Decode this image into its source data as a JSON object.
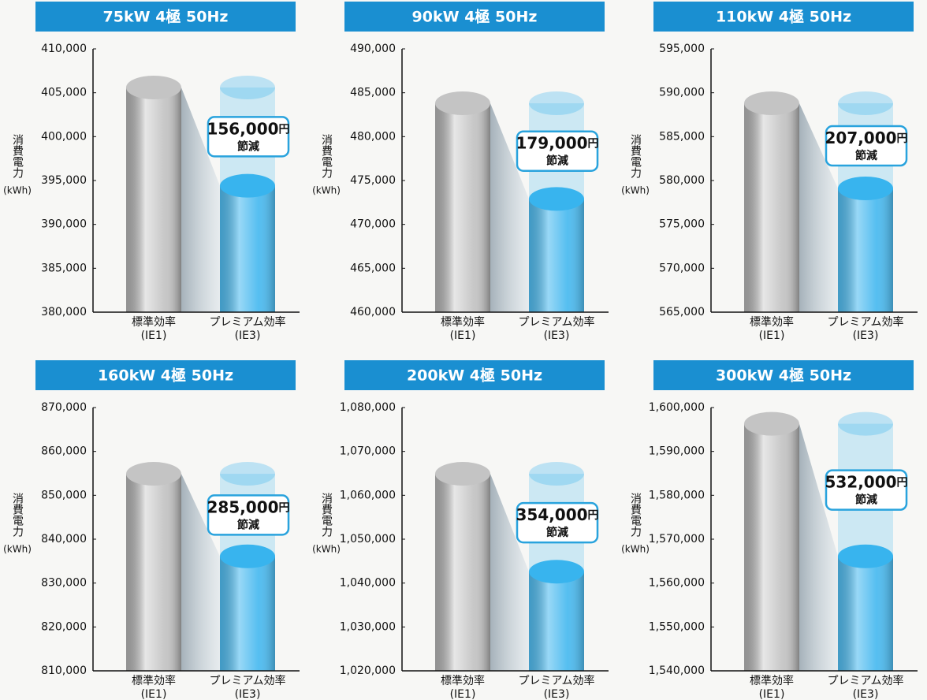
{
  "chart_data": [
    {
      "type": "cylinder",
      "title": "75kW 4極 50Hz",
      "ylabel": "消費電力",
      "yunit": "(kWh)",
      "categories": [
        "標準効率",
        "プレミアム効率"
      ],
      "category_notes": [
        "(IE1)",
        "(IE3)"
      ],
      "values": [
        405600,
        394400
      ],
      "colors": [
        "#c4c4c4",
        "#38b4ee"
      ],
      "annotation": {
        "amount": "156,000",
        "unit": "円",
        "text": "節減"
      },
      "ylim": [
        380000,
        410000
      ],
      "yticks": [
        {
          "value": 380000,
          "label": "380,000"
        },
        {
          "value": 385000,
          "label": "385,000"
        },
        {
          "value": 390000,
          "label": "390,000"
        },
        {
          "value": 395000,
          "label": "395,000"
        },
        {
          "value": 400000,
          "label": "400,000"
        },
        {
          "value": 405000,
          "label": "405,000"
        },
        {
          "value": 410000,
          "label": "410,000"
        }
      ]
    },
    {
      "type": "cylinder",
      "title": "90kW 4極 50Hz",
      "ylabel": "消費電力",
      "yunit": "(kWh)",
      "categories": [
        "標準効率",
        "プレミアム効率"
      ],
      "category_notes": [
        "(IE1)",
        "(IE3)"
      ],
      "values": [
        483800,
        472900
      ],
      "colors": [
        "#c4c4c4",
        "#38b4ee"
      ],
      "annotation": {
        "amount": "179,000",
        "unit": "円",
        "text": "節減"
      },
      "ylim": [
        460000,
        490000
      ],
      "yticks": [
        {
          "value": 460000,
          "label": "460,000"
        },
        {
          "value": 465000,
          "label": "465,000"
        },
        {
          "value": 470000,
          "label": "470,000"
        },
        {
          "value": 475000,
          "label": "475,000"
        },
        {
          "value": 480000,
          "label": "480,000"
        },
        {
          "value": 485000,
          "label": "485,000"
        },
        {
          "value": 490000,
          "label": "490,000"
        }
      ]
    },
    {
      "type": "cylinder",
      "title": "110kW 4極 50Hz",
      "ylabel": "消費電力",
      "yunit": "(kWh)",
      "categories": [
        "標準効率",
        "プレミアム効率"
      ],
      "category_notes": [
        "(IE1)",
        "(IE3)"
      ],
      "values": [
        588800,
        579100
      ],
      "colors": [
        "#c4c4c4",
        "#38b4ee"
      ],
      "annotation": {
        "amount": "207,000",
        "unit": "円",
        "text": "節減"
      },
      "ylim": [
        565000,
        595000
      ],
      "yticks": [
        {
          "value": 565000,
          "label": "565,000"
        },
        {
          "value": 570000,
          "label": "570,000"
        },
        {
          "value": 575000,
          "label": "575,000"
        },
        {
          "value": 580000,
          "label": "580,000"
        },
        {
          "value": 585000,
          "label": "585,000"
        },
        {
          "value": 590000,
          "label": "590,000"
        },
        {
          "value": 595000,
          "label": "595,000"
        }
      ]
    },
    {
      "type": "cylinder",
      "title": "160kW 4極 50Hz",
      "ylabel": "消費電力",
      "yunit": "(kWh)",
      "categories": [
        "標準効率",
        "プレミアム効率"
      ],
      "category_notes": [
        "(IE1)",
        "(IE3)"
      ],
      "values": [
        854900,
        836100
      ],
      "colors": [
        "#c4c4c4",
        "#38b4ee"
      ],
      "annotation": {
        "amount": "285,000",
        "unit": "円",
        "text": "節減"
      },
      "ylim": [
        810000,
        870000
      ],
      "yticks": [
        {
          "value": 810000,
          "label": "810,000"
        },
        {
          "value": 820000,
          "label": "820,000"
        },
        {
          "value": 830000,
          "label": "830,000"
        },
        {
          "value": 840000,
          "label": "840,000"
        },
        {
          "value": 850000,
          "label": "850,000"
        },
        {
          "value": 860000,
          "label": "860,000"
        },
        {
          "value": 870000,
          "label": "870,000"
        }
      ]
    },
    {
      "type": "cylinder",
      "title": "200kW 4極 50Hz",
      "ylabel": "消費電力",
      "yunit": "(kWh)",
      "categories": [
        "標準効率",
        "プレミアム効率"
      ],
      "category_notes": [
        "(IE1)",
        "(IE3)"
      ],
      "values": [
        1064900,
        1042600
      ],
      "colors": [
        "#c4c4c4",
        "#38b4ee"
      ],
      "annotation": {
        "amount": "354,000",
        "unit": "円",
        "text": "節減"
      },
      "ylim": [
        1020000,
        1080000
      ],
      "yticks": [
        {
          "value": 1020000,
          "label": "1,020,000"
        },
        {
          "value": 1030000,
          "label": "1,030,000"
        },
        {
          "value": 1040000,
          "label": "1,040,000"
        },
        {
          "value": 1050000,
          "label": "1,050,000"
        },
        {
          "value": 1060000,
          "label": "1,060,000"
        },
        {
          "value": 1070000,
          "label": "1,070,000"
        },
        {
          "value": 1080000,
          "label": "1,080,000"
        }
      ]
    },
    {
      "type": "cylinder",
      "title": "300kW 4極 50Hz",
      "ylabel": "消費電力",
      "yunit": "(kWh)",
      "categories": [
        "標準効率",
        "プレミアム効率"
      ],
      "category_notes": [
        "(IE1)",
        "(IE3)"
      ],
      "values": [
        1596300,
        1566100
      ],
      "colors": [
        "#c4c4c4",
        "#38b4ee"
      ],
      "annotation": {
        "amount": "532,000",
        "unit": "円",
        "text": "節減"
      },
      "ylim": [
        1540000,
        1600000
      ],
      "yticks": [
        {
          "value": 1540000,
          "label": "1,540,000"
        },
        {
          "value": 1550000,
          "label": "1,550,000"
        },
        {
          "value": 1560000,
          "label": "1,560,000"
        },
        {
          "value": 1570000,
          "label": "1,570,000"
        },
        {
          "value": 1580000,
          "label": "1,580,000"
        },
        {
          "value": 1590000,
          "label": "1,590,000"
        },
        {
          "value": 1600000,
          "label": "1,600,000"
        }
      ]
    }
  ]
}
